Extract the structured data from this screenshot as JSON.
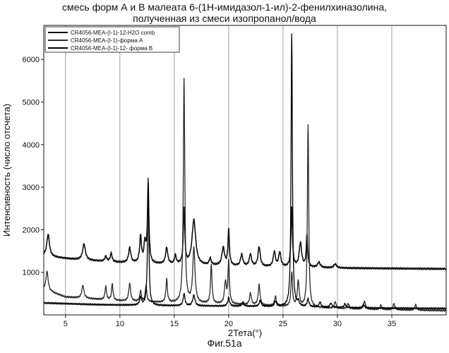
{
  "chart_data": {
    "type": "line",
    "title_line1": "смесь форм А и В малеата 6-(1H-имидазол-1-ил)-2-фенилхиназолина,",
    "title_line2": "полученная из смеси изопропанол/вода",
    "xlabel": "2Тета(°)",
    "ylabel": "Интенсивность (число отсчета)",
    "caption": "Фиг.51а",
    "xlim": [
      3,
      40
    ],
    "ylim": [
      0,
      6800
    ],
    "xticks": [
      5,
      10,
      15,
      20,
      25,
      30,
      35
    ],
    "yticks": [
      1000,
      2000,
      3000,
      4000,
      5000,
      6000
    ],
    "grid": "vertical",
    "legend_position": "top-left",
    "series": [
      {
        "name": "CR4056-MEA-(I-1)-12-H2O comb",
        "color": "#111111",
        "baseline": [
          [
            3,
            1380
          ],
          [
            6,
            1300
          ],
          [
            10,
            1230
          ],
          [
            15,
            1180
          ],
          [
            20,
            1150
          ],
          [
            25,
            1120
          ],
          [
            30,
            1100
          ],
          [
            35,
            1090
          ],
          [
            40,
            1080
          ]
        ],
        "peaks": [
          [
            3.4,
            520,
            0.15
          ],
          [
            6.7,
            380,
            0.15
          ],
          [
            8.7,
            120,
            0.1
          ],
          [
            9.2,
            200,
            0.1
          ],
          [
            10.9,
            350,
            0.12
          ],
          [
            11.9,
            620,
            0.1
          ],
          [
            12.3,
            460,
            0.1
          ],
          [
            12.6,
            1830,
            0.08
          ],
          [
            14.3,
            380,
            0.12
          ],
          [
            15.1,
            200,
            0.1
          ],
          [
            15.9,
            1300,
            0.08
          ],
          [
            16.8,
            1050,
            0.2
          ],
          [
            18.3,
            160,
            0.1
          ],
          [
            19.5,
            420,
            0.14
          ],
          [
            20.0,
            840,
            0.08
          ],
          [
            21.2,
            270,
            0.12
          ],
          [
            22.0,
            280,
            0.12
          ],
          [
            22.8,
            460,
            0.12
          ],
          [
            24.2,
            350,
            0.12
          ],
          [
            24.7,
            340,
            0.12
          ],
          [
            25.8,
            1380,
            0.08
          ],
          [
            26.6,
            560,
            0.14
          ],
          [
            27.2,
            750,
            0.08
          ],
          [
            28.3,
            120,
            0.15
          ],
          [
            29.8,
            90,
            0.15
          ]
        ]
      },
      {
        "name": "CR4056-MEA-(I-1)-форма A",
        "color": "#2a2a2a",
        "baseline": [
          [
            3,
            600
          ],
          [
            5,
            420
          ],
          [
            10,
            330
          ],
          [
            15,
            280
          ],
          [
            20,
            250
          ],
          [
            25,
            200
          ],
          [
            30,
            150
          ],
          [
            35,
            120
          ],
          [
            40,
            100
          ]
        ],
        "peaks": [
          [
            3.3,
            450,
            0.12
          ],
          [
            6.6,
            300,
            0.12
          ],
          [
            8.7,
            320,
            0.08
          ],
          [
            9.3,
            380,
            0.08
          ],
          [
            10.9,
            420,
            0.1
          ],
          [
            11.9,
            260,
            0.08
          ],
          [
            12.4,
            380,
            0.08
          ],
          [
            14.3,
            550,
            0.08
          ],
          [
            15.9,
            5250,
            0.08
          ],
          [
            16.8,
            1300,
            0.12
          ],
          [
            18.4,
            900,
            0.08
          ],
          [
            19.7,
            500,
            0.1
          ],
          [
            20.0,
            1000,
            0.08
          ],
          [
            22.0,
            280,
            0.1
          ],
          [
            22.8,
            480,
            0.1
          ],
          [
            24.3,
            220,
            0.1
          ],
          [
            25.8,
            800,
            0.08
          ],
          [
            26.4,
            600,
            0.1
          ],
          [
            27.3,
            4300,
            0.07
          ],
          [
            29.8,
            150,
            0.1
          ],
          [
            31.0,
            120,
            0.1
          ],
          [
            32.5,
            180,
            0.1
          ],
          [
            34.0,
            100,
            0.1
          ],
          [
            35.2,
            140,
            0.1
          ],
          [
            37.2,
            120,
            0.1
          ]
        ]
      },
      {
        "name": "CR4056-MEA-(I-1)-12- форма B",
        "color": "#000000",
        "baseline": [
          [
            3,
            280
          ],
          [
            8,
            240
          ],
          [
            13,
            220
          ],
          [
            18,
            210
          ],
          [
            23,
            200
          ],
          [
            28,
            180
          ],
          [
            33,
            160
          ],
          [
            40,
            150
          ]
        ],
        "peaks": [
          [
            11.9,
            180,
            0.1
          ],
          [
            12.6,
            3000,
            0.07
          ],
          [
            15.9,
            280,
            0.1
          ],
          [
            16.8,
            250,
            0.12
          ],
          [
            20.0,
            200,
            0.1
          ],
          [
            21.3,
            100,
            0.1
          ],
          [
            22.9,
            140,
            0.1
          ],
          [
            24.3,
            120,
            0.1
          ],
          [
            25.8,
            6400,
            0.07
          ],
          [
            26.4,
            100,
            0.1
          ],
          [
            27.3,
            180,
            0.1
          ],
          [
            28.4,
            120,
            0.1
          ],
          [
            29.4,
            100,
            0.1
          ],
          [
            30.7,
            90,
            0.1
          ],
          [
            32.4,
            80,
            0.1
          ]
        ]
      }
    ]
  }
}
